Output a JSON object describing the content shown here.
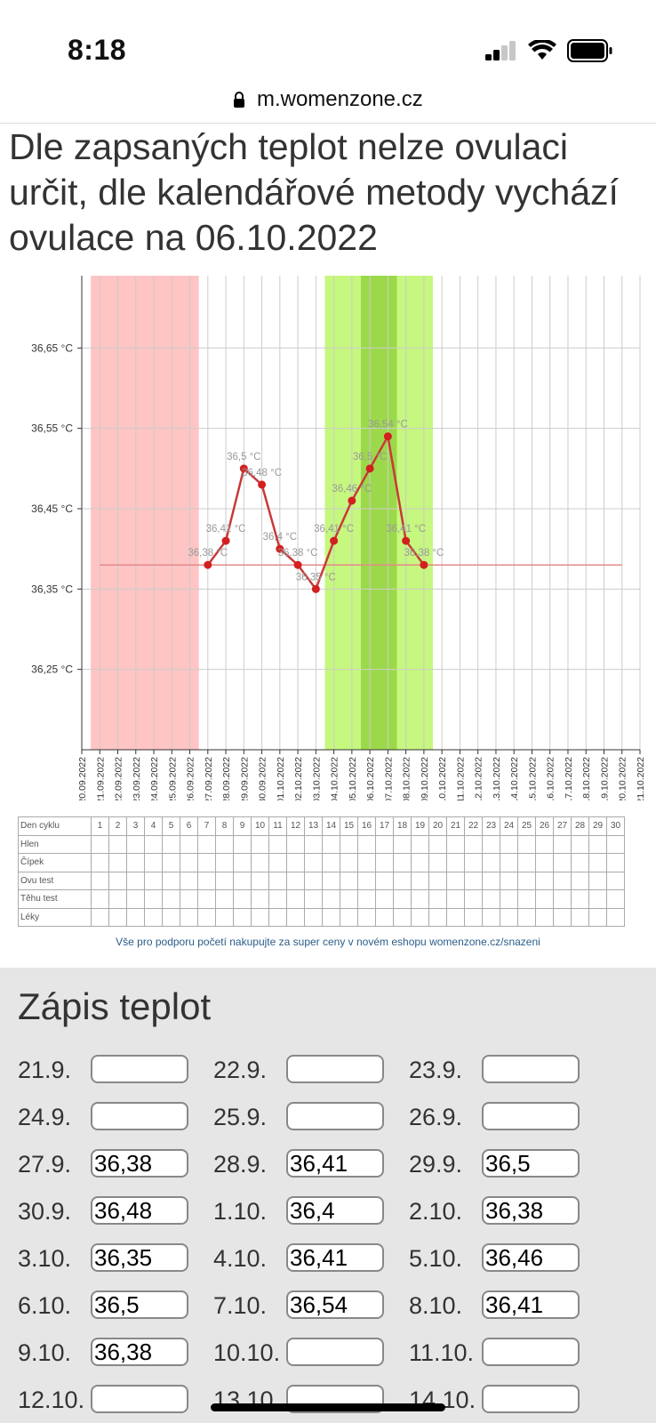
{
  "status": {
    "time": "8:18"
  },
  "browser": {
    "url": "m.womenzone.cz"
  },
  "headline": "Dle zapsaných teplot nelze ovulaci určit, dle kalendářové metody vychází ovulace na 06.10.2022",
  "chart_data": {
    "type": "line",
    "x": [
      "20.09.2022",
      "21.09.2022",
      "22.09.2022",
      "23.09.2022",
      "24.09.2022",
      "25.09.2022",
      "26.09.2022",
      "27.09.2022",
      "28.09.2022",
      "29.09.2022",
      "30.09.2022",
      "01.10.2022",
      "02.10.2022",
      "03.10.2022",
      "04.10.2022",
      "05.10.2022",
      "06.10.2022",
      "07.10.2022",
      "08.10.2022",
      "09.10.2022",
      "10.10.2022",
      "11.10.2022",
      "12.10.2022",
      "13.10.2022",
      "14.10.2022",
      "15.10.2022",
      "16.10.2022",
      "17.10.2022",
      "18.10.2022",
      "19.10.2022",
      "20.10.2022",
      "21.10.2022"
    ],
    "y_ticks": [
      "36,65 °C",
      "36,55 °C",
      "36,45 °C",
      "36,35 °C",
      "36,25 °C"
    ],
    "y_tick_values": [
      36.65,
      36.55,
      36.45,
      36.35,
      36.25
    ],
    "ylim": [
      36.15,
      36.74
    ],
    "series": [
      {
        "points": [
          {
            "x": "27.09.2022",
            "y": 36.38,
            "label": "36,38 °C"
          },
          {
            "x": "28.09.2022",
            "y": 36.41,
            "label": "36,41 °C"
          },
          {
            "x": "29.09.2022",
            "y": 36.5,
            "label": "36,5 °C"
          },
          {
            "x": "30.09.2022",
            "y": 36.48,
            "label": "36,48 °C"
          },
          {
            "x": "01.10.2022",
            "y": 36.4,
            "label": "36,4 °C"
          },
          {
            "x": "02.10.2022",
            "y": 36.38,
            "label": "36,38 °C"
          },
          {
            "x": "03.10.2022",
            "y": 36.35,
            "label": "36,35 °C"
          },
          {
            "x": "04.10.2022",
            "y": 36.41,
            "label": "36,41 °C"
          },
          {
            "x": "05.10.2022",
            "y": 36.46,
            "label": "36,46 °C"
          },
          {
            "x": "06.10.2022",
            "y": 36.5,
            "label": "36,5 °C"
          },
          {
            "x": "07.10.2022",
            "y": 36.54,
            "label": "36,54 °C"
          },
          {
            "x": "08.10.2022",
            "y": 36.41,
            "label": "36,41 °C"
          },
          {
            "x": "09.10.2022",
            "y": 36.38,
            "label": "36,38 °C"
          }
        ]
      }
    ],
    "baseline": {
      "y": 36.38,
      "from": "21.09.2022",
      "to": "20.10.2022"
    },
    "bands": [
      {
        "from": "21.09.2022",
        "to": "26.09.2022",
        "color": "#ffc4c4"
      },
      {
        "from": "04.10.2022",
        "to": "09.10.2022",
        "color": "#c6f77e"
      },
      {
        "from": "06.10.2022",
        "to": "07.10.2022",
        "color": "#9cd94a"
      }
    ],
    "colors": {
      "line": "#c83a3a",
      "baseline": "#e58a8a",
      "grid": "#cccccc"
    }
  },
  "cycle_table": {
    "rows": [
      "Den cyklu",
      "Hlen",
      "Čípek",
      "Ovu test",
      "Těhu test",
      "Léky"
    ],
    "days": [
      "1",
      "2",
      "3",
      "4",
      "5",
      "6",
      "7",
      "8",
      "9",
      "10",
      "11",
      "12",
      "13",
      "14",
      "15",
      "16",
      "17",
      "18",
      "19",
      "20",
      "21",
      "22",
      "23",
      "24",
      "25",
      "26",
      "27",
      "28",
      "29",
      "30"
    ]
  },
  "promo": "Vše pro podporu početí nakupujte za super ceny v novém eshopu womenzone.cz/snazeni",
  "entries_title": "Zápis teplot",
  "entries": [
    {
      "label": "21.9.",
      "value": ""
    },
    {
      "label": "22.9.",
      "value": ""
    },
    {
      "label": "23.9.",
      "value": ""
    },
    {
      "label": "24.9.",
      "value": ""
    },
    {
      "label": "25.9.",
      "value": ""
    },
    {
      "label": "26.9.",
      "value": ""
    },
    {
      "label": "27.9.",
      "value": "36,38"
    },
    {
      "label": "28.9.",
      "value": "36,41"
    },
    {
      "label": "29.9.",
      "value": "36,5"
    },
    {
      "label": "30.9.",
      "value": "36,48"
    },
    {
      "label": "1.10.",
      "value": "36,4"
    },
    {
      "label": "2.10.",
      "value": "36,38"
    },
    {
      "label": "3.10.",
      "value": "36,35"
    },
    {
      "label": "4.10.",
      "value": "36,41"
    },
    {
      "label": "5.10.",
      "value": "36,46"
    },
    {
      "label": "6.10.",
      "value": "36,5"
    },
    {
      "label": "7.10.",
      "value": "36,54"
    },
    {
      "label": "8.10.",
      "value": "36,41"
    },
    {
      "label": "9.10.",
      "value": "36,38"
    },
    {
      "label": "10.10.",
      "value": ""
    },
    {
      "label": "11.10.",
      "value": ""
    },
    {
      "label": "12.10.",
      "value": ""
    },
    {
      "label": "13.10.",
      "value": ""
    },
    {
      "label": "14.10.",
      "value": ""
    }
  ]
}
